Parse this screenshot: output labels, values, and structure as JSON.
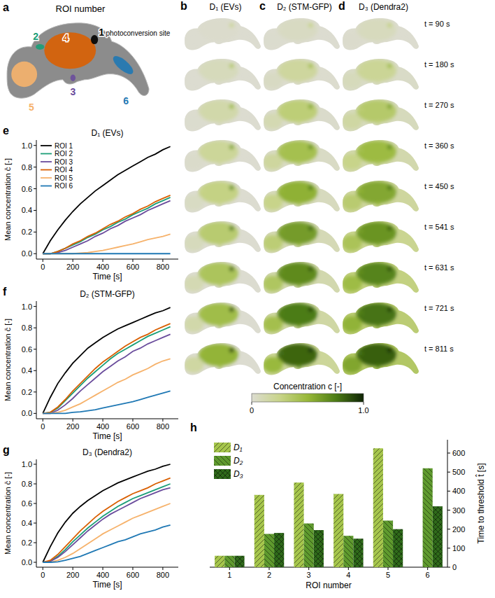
{
  "panels": {
    "a": {
      "letter": "a",
      "title": "ROI number",
      "annotation": "photoconversion site",
      "roi_labels": [
        "1",
        "2",
        "3",
        "4",
        "5",
        "6"
      ],
      "roi_colors": [
        "#000000",
        "#1b9e77",
        "#6a4c9c",
        "#d95f02",
        "#f6b26b",
        "#1f78b4"
      ]
    },
    "snapshots": {
      "letters": [
        "b",
        "c",
        "d"
      ],
      "titles": [
        "D₁ (EVs)",
        "D₂ (STM-GFP)",
        "D₃ (Dendra2)"
      ],
      "times": [
        90,
        180,
        270,
        360,
        450,
        541,
        631,
        721,
        811
      ],
      "time_labels": [
        "t = 90 s",
        "t = 180 s",
        "t = 270 s",
        "t = 360 s",
        "t = 450 s",
        "t = 541 s",
        "t = 631 s",
        "t = 721 s",
        "t = 811 s"
      ]
    },
    "colorbar": {
      "label": "Concentration c [-]",
      "range": [
        0,
        1
      ],
      "ticks": [
        0,
        {
          "value": 1,
          "label": "1.0"
        }
      ]
    }
  },
  "chart_data": [
    {
      "panel": "e",
      "type": "line",
      "title": "D₁ (EVs)",
      "x_label": "Time [s]",
      "y_label": "Mean concentration c̄ [-]",
      "x": [
        0,
        50,
        100,
        150,
        200,
        250,
        300,
        350,
        400,
        450,
        500,
        550,
        600,
        650,
        700,
        750,
        800,
        850
      ],
      "xlim": [
        -43,
        903
      ],
      "xticks": [
        0,
        200,
        400,
        600,
        800
      ],
      "ylim": [
        -0.05,
        1.05
      ],
      "yticks": [
        {
          "value": 0,
          "label": "0.0"
        },
        0.2,
        0.4,
        0.6,
        0.8,
        {
          "value": 1,
          "label": "1.0"
        }
      ],
      "legend": "upper left",
      "series": [
        {
          "name": "ROI 1",
          "color": "#000000",
          "values": [
            0,
            0.12,
            0.22,
            0.31,
            0.39,
            0.46,
            0.52,
            0.58,
            0.63,
            0.68,
            0.73,
            0.77,
            0.81,
            0.85,
            0.89,
            0.92,
            0.96,
            0.99
          ]
        },
        {
          "name": "ROI 2",
          "color": "#1b9e77",
          "values": [
            0,
            0,
            0.02,
            0.05,
            0.08,
            0.11,
            0.15,
            0.18,
            0.22,
            0.25,
            0.29,
            0.32,
            0.36,
            0.39,
            0.42,
            0.46,
            0.49,
            0.52
          ]
        },
        {
          "name": "ROI 3",
          "color": "#6a4c9c",
          "values": [
            0,
            0,
            0.01,
            0.03,
            0.06,
            0.09,
            0.12,
            0.16,
            0.19,
            0.23,
            0.26,
            0.3,
            0.33,
            0.36,
            0.4,
            0.43,
            0.46,
            0.49
          ]
        },
        {
          "name": "ROI 4",
          "color": "#d95f02",
          "values": [
            0,
            0,
            0.02,
            0.05,
            0.09,
            0.12,
            0.16,
            0.19,
            0.23,
            0.27,
            0.3,
            0.34,
            0.37,
            0.41,
            0.44,
            0.48,
            0.51,
            0.54
          ]
        },
        {
          "name": "ROI 5",
          "color": "#f6b26b",
          "values": [
            0,
            0,
            0,
            0,
            0,
            0.005,
            0.01,
            0.02,
            0.03,
            0.045,
            0.06,
            0.075,
            0.09,
            0.11,
            0.13,
            0.145,
            0.16,
            0.18
          ]
        },
        {
          "name": "ROI 6",
          "color": "#1f78b4",
          "values": [
            0,
            0,
            0,
            0,
            0,
            0,
            0,
            0,
            0,
            0,
            0,
            0,
            0,
            0,
            0,
            0,
            0,
            0
          ]
        }
      ]
    },
    {
      "panel": "f",
      "type": "line",
      "title": "D₂ (STM-GFP)",
      "x_label": "Time [s]",
      "y_label": "Mean concentration c̄ [-]",
      "x": [
        0,
        50,
        100,
        150,
        200,
        250,
        300,
        350,
        400,
        450,
        500,
        550,
        600,
        650,
        700,
        750,
        800,
        850
      ],
      "xlim": [
        -43,
        903
      ],
      "xticks": [
        0,
        200,
        400,
        600,
        800
      ],
      "ylim": [
        -0.05,
        1.05
      ],
      "yticks": [
        {
          "value": 0,
          "label": "0.0"
        },
        0.2,
        0.4,
        0.6,
        0.8,
        {
          "value": 1,
          "label": "1.0"
        }
      ],
      "series": [
        {
          "name": "ROI 1",
          "color": "#000000",
          "values": [
            0,
            0.15,
            0.28,
            0.38,
            0.47,
            0.54,
            0.61,
            0.66,
            0.71,
            0.75,
            0.79,
            0.82,
            0.85,
            0.88,
            0.91,
            0.94,
            0.96,
            0.99
          ]
        },
        {
          "name": "ROI 2",
          "color": "#1b9e77",
          "values": [
            0,
            0.01,
            0.05,
            0.12,
            0.19,
            0.26,
            0.33,
            0.39,
            0.45,
            0.51,
            0.56,
            0.6,
            0.64,
            0.68,
            0.72,
            0.75,
            0.78,
            0.81
          ]
        },
        {
          "name": "ROI 3",
          "color": "#6a4c9c",
          "values": [
            0,
            0,
            0.03,
            0.08,
            0.14,
            0.21,
            0.27,
            0.33,
            0.39,
            0.44,
            0.49,
            0.53,
            0.58,
            0.61,
            0.65,
            0.68,
            0.71,
            0.74
          ]
        },
        {
          "name": "ROI 4",
          "color": "#d95f02",
          "values": [
            0,
            0.01,
            0.06,
            0.13,
            0.21,
            0.28,
            0.35,
            0.42,
            0.48,
            0.53,
            0.58,
            0.63,
            0.67,
            0.71,
            0.74,
            0.78,
            0.81,
            0.84
          ]
        },
        {
          "name": "ROI 5",
          "color": "#f6b26b",
          "values": [
            0,
            0,
            0.01,
            0.03,
            0.06,
            0.09,
            0.13,
            0.17,
            0.21,
            0.25,
            0.29,
            0.32,
            0.36,
            0.39,
            0.42,
            0.46,
            0.49,
            0.51
          ]
        },
        {
          "name": "ROI 6",
          "color": "#1f78b4",
          "values": [
            0,
            0,
            0,
            0,
            0.01,
            0.015,
            0.025,
            0.035,
            0.05,
            0.065,
            0.08,
            0.095,
            0.11,
            0.13,
            0.15,
            0.17,
            0.19,
            0.21
          ]
        }
      ]
    },
    {
      "panel": "g",
      "type": "line",
      "title": "D₃ (Dendra2)",
      "x_label": "Time [s]",
      "y_label": "Mean concentration c̄ [-]",
      "x": [
        0,
        50,
        100,
        150,
        200,
        250,
        300,
        350,
        400,
        450,
        500,
        550,
        600,
        650,
        700,
        750,
        800,
        850
      ],
      "xlim": [
        -43,
        903
      ],
      "xticks": [
        0,
        200,
        400,
        600,
        800
      ],
      "ylim": [
        -0.05,
        1.05
      ],
      "yticks": [
        {
          "value": 0,
          "label": "0.0"
        },
        0.2,
        0.4,
        0.6,
        0.8,
        {
          "value": 1,
          "label": "1.0"
        }
      ],
      "series": [
        {
          "name": "ROI 1",
          "color": "#000000",
          "values": [
            0,
            0.16,
            0.3,
            0.41,
            0.5,
            0.57,
            0.63,
            0.68,
            0.73,
            0.77,
            0.81,
            0.84,
            0.87,
            0.9,
            0.93,
            0.95,
            0.98,
            1.0
          ]
        },
        {
          "name": "ROI 2",
          "color": "#1b9e77",
          "values": [
            0,
            0.01,
            0.06,
            0.13,
            0.21,
            0.28,
            0.35,
            0.41,
            0.47,
            0.52,
            0.57,
            0.61,
            0.65,
            0.68,
            0.71,
            0.74,
            0.77,
            0.8
          ]
        },
        {
          "name": "ROI 3",
          "color": "#6a4c9c",
          "values": [
            0,
            0.01,
            0.05,
            0.11,
            0.18,
            0.25,
            0.32,
            0.38,
            0.44,
            0.49,
            0.53,
            0.57,
            0.61,
            0.65,
            0.68,
            0.71,
            0.74,
            0.76
          ]
        },
        {
          "name": "ROI 4",
          "color": "#d95f02",
          "values": [
            0,
            0.02,
            0.08,
            0.16,
            0.24,
            0.32,
            0.39,
            0.46,
            0.52,
            0.57,
            0.62,
            0.66,
            0.7,
            0.73,
            0.76,
            0.8,
            0.83,
            0.86
          ]
        },
        {
          "name": "ROI 5",
          "color": "#f6b26b",
          "values": [
            0,
            0,
            0.02,
            0.05,
            0.09,
            0.14,
            0.19,
            0.24,
            0.29,
            0.33,
            0.37,
            0.41,
            0.45,
            0.48,
            0.51,
            0.54,
            0.57,
            0.6
          ]
        },
        {
          "name": "ROI 6",
          "color": "#1f78b4",
          "values": [
            0,
            0,
            0.005,
            0.02,
            0.04,
            0.06,
            0.09,
            0.12,
            0.15,
            0.18,
            0.21,
            0.23,
            0.26,
            0.29,
            0.31,
            0.33,
            0.36,
            0.38
          ]
        }
      ]
    },
    {
      "panel": "h",
      "type": "bar",
      "x_label": "ROI number",
      "y_label": "Time to threshold t̂ [s]",
      "categories": [
        "1",
        "2",
        "3",
        "4",
        "5",
        "6"
      ],
      "ylim": [
        0,
        670
      ],
      "yticks": [
        0,
        100,
        200,
        300,
        400,
        500,
        600
      ],
      "legend": "upper left",
      "series": [
        {
          "name": "D₁",
          "color": "#a6c64c",
          "values": [
            60,
            380,
            445,
            385,
            625,
            null
          ]
        },
        {
          "name": "D₂",
          "color": "#5f9a2e",
          "values": [
            60,
            175,
            230,
            165,
            245,
            520
          ]
        },
        {
          "name": "D₃",
          "color": "#2f6a1a",
          "values": [
            60,
            180,
            195,
            150,
            200,
            320
          ]
        }
      ]
    }
  ]
}
